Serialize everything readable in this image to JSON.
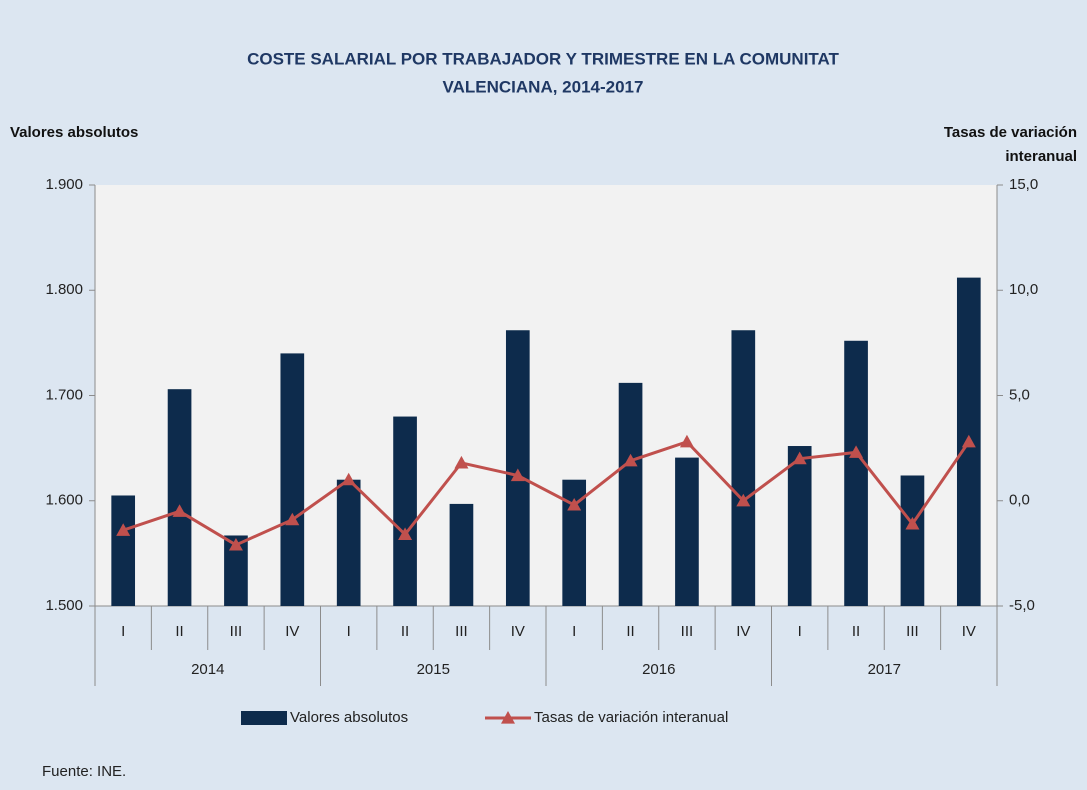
{
  "chart_data": {
    "type": "bar_line",
    "title": [
      "COSTE SALARIAL POR TRABAJADOR Y TRIMESTRE EN LA COMUNITAT",
      "VALENCIANA, 2014-2017"
    ],
    "y_label": "Valores absolutos",
    "y2_label": [
      "Tasas de variación",
      "interanual"
    ],
    "source": "Fuente: INE.",
    "categories": [
      "I",
      "II",
      "III",
      "IV",
      "I",
      "II",
      "III",
      "IV",
      "I",
      "II",
      "III",
      "IV",
      "I",
      "II",
      "III",
      "IV"
    ],
    "year_groups": [
      "2014",
      "2015",
      "2016",
      "2017"
    ],
    "series": [
      {
        "name": "Valores absolutos",
        "type": "bar",
        "color": "#0d2b4c",
        "values": [
          1605,
          1706,
          1567,
          1740,
          1620,
          1680,
          1597,
          1762,
          1620,
          1712,
          1641,
          1762,
          1652,
          1752,
          1624,
          1812
        ]
      },
      {
        "name": "Tasas de variación interanual",
        "type": "line",
        "axis": "y2",
        "color": "#c0504d",
        "values": [
          -1.4,
          -0.5,
          -2.1,
          -0.9,
          1.0,
          -1.6,
          1.8,
          1.2,
          -0.2,
          1.9,
          2.8,
          0.0,
          2.0,
          2.3,
          -1.1,
          2.8
        ]
      }
    ],
    "ylim": [
      1500,
      1900
    ],
    "yticks": [
      {
        "value": 1500,
        "label": "1.500"
      },
      {
        "value": 1600,
        "label": "1.600"
      },
      {
        "value": 1700,
        "label": "1.700"
      },
      {
        "value": 1800,
        "label": "1.800"
      },
      {
        "value": 1900,
        "label": "1.900"
      }
    ],
    "y2lim": [
      -5,
      15
    ],
    "y2ticks": [
      {
        "value": -5,
        "label": "-5,0"
      },
      {
        "value": 0,
        "label": "0,0"
      },
      {
        "value": 5,
        "label": "5,0"
      },
      {
        "value": 10,
        "label": "10,0"
      },
      {
        "value": 15,
        "label": "15,0"
      }
    ],
    "grid": false,
    "legend": "bottom"
  }
}
